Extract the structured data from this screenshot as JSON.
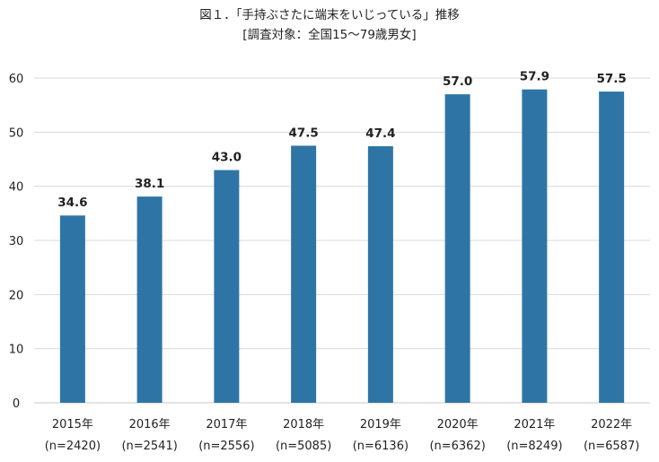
{
  "chart_data": {
    "type": "bar",
    "title": "図１．「手持ぶさたに端末をいじっている」推移",
    "subtitle": "[調査対象：全国15～79歳男女]",
    "categories": [
      "2015年",
      "2016年",
      "2017年",
      "2018年",
      "2019年",
      "2020年",
      "2021年",
      "2022年"
    ],
    "sample_sizes": [
      "(n=2420)",
      "(n=2541)",
      "(n=2556)",
      "(n=5085)",
      "(n=6136)",
      "(n=6362)",
      "(n=8249)",
      "(n=6587)"
    ],
    "values": [
      34.6,
      38.1,
      43.0,
      47.5,
      47.4,
      57.0,
      57.9,
      57.5
    ],
    "data_labels": [
      "34.6",
      "38.1",
      "43.0",
      "47.5",
      "47.4",
      "57.0",
      "57.9",
      "57.5"
    ],
    "xlabel": "",
    "ylabel": "",
    "ylim": [
      0,
      60
    ],
    "yticks": [
      "0",
      "10",
      "20",
      "30",
      "40",
      "50",
      "60"
    ],
    "grid": true,
    "bar_color": "#2e75a6"
  }
}
